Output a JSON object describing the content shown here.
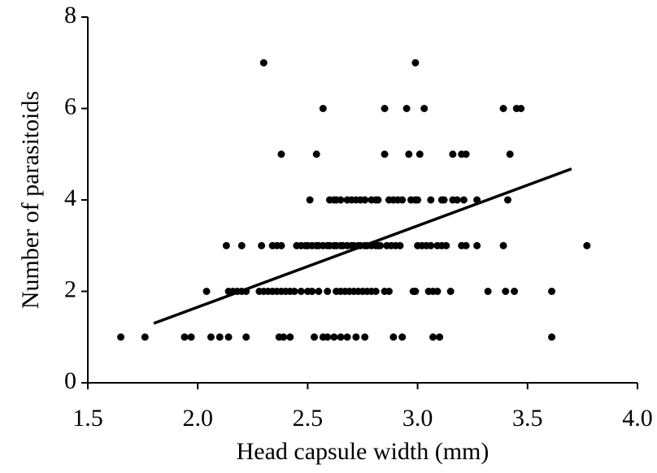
{
  "chart_data": {
    "type": "scatter",
    "x_label": "Head capsule width (mm)",
    "y_label": "Number of parasitoids",
    "color": "#000000",
    "x": [
      1.65,
      1.76,
      1.94,
      1.97,
      2.06,
      2.1,
      2.14,
      2.22,
      2.37,
      2.39,
      2.42,
      2.53,
      2.57,
      2.59,
      2.62,
      2.65,
      2.68,
      2.72,
      2.76,
      2.89,
      2.93,
      3.07,
      3.1,
      3.61,
      2.04,
      2.14,
      2.16,
      2.18,
      2.2,
      2.22,
      2.28,
      2.3,
      2.32,
      2.34,
      2.36,
      2.38,
      2.4,
      2.42,
      2.44,
      2.47,
      2.5,
      2.52,
      2.55,
      2.59,
      2.63,
      2.65,
      2.67,
      2.69,
      2.71,
      2.73,
      2.75,
      2.77,
      2.79,
      2.81,
      2.85,
      2.87,
      2.98,
      2.99,
      3.05,
      3.07,
      3.09,
      3.15,
      3.32,
      3.4,
      3.44,
      3.61,
      2.13,
      2.2,
      2.29,
      2.34,
      2.36,
      2.38,
      2.45,
      2.47,
      2.49,
      2.5,
      2.52,
      2.54,
      2.55,
      2.57,
      2.59,
      2.6,
      2.62,
      2.63,
      2.65,
      2.66,
      2.68,
      2.7,
      2.71,
      2.73,
      2.74,
      2.76,
      2.77,
      2.79,
      2.81,
      2.82,
      2.83,
      2.86,
      2.88,
      2.9,
      2.92,
      3.0,
      3.02,
      3.04,
      3.06,
      3.09,
      3.11,
      3.13,
      3.2,
      3.22,
      3.27,
      3.39,
      3.77,
      2.51,
      2.6,
      2.62,
      2.63,
      2.65,
      2.68,
      2.7,
      2.72,
      2.74,
      2.76,
      2.79,
      2.81,
      2.82,
      2.87,
      2.89,
      2.91,
      2.93,
      2.97,
      2.99,
      3.0,
      3.06,
      3.11,
      3.12,
      3.16,
      3.18,
      3.21,
      3.27,
      3.41,
      2.38,
      2.54,
      2.85,
      2.96,
      3.01,
      3.16,
      3.2,
      3.22,
      3.42,
      2.57,
      2.85,
      2.95,
      3.03,
      3.39,
      3.45,
      3.47,
      2.3,
      2.99
    ],
    "y": [
      1,
      1,
      1,
      1,
      1,
      1,
      1,
      1,
      1,
      1,
      1,
      1,
      1,
      1,
      1,
      1,
      1,
      1,
      1,
      1,
      1,
      1,
      1,
      1,
      2,
      2,
      2,
      2,
      2,
      2,
      2,
      2,
      2,
      2,
      2,
      2,
      2,
      2,
      2,
      2,
      2,
      2,
      2,
      2,
      2,
      2,
      2,
      2,
      2,
      2,
      2,
      2,
      2,
      2,
      2,
      2,
      2,
      2,
      2,
      2,
      2,
      2,
      2,
      2,
      2,
      2,
      3,
      3,
      3,
      3,
      3,
      3,
      3,
      3,
      3,
      3,
      3,
      3,
      3,
      3,
      3,
      3,
      3,
      3,
      3,
      3,
      3,
      3,
      3,
      3,
      3,
      3,
      3,
      3,
      3,
      3,
      3,
      3,
      3,
      3,
      3,
      3,
      3,
      3,
      3,
      3,
      3,
      3,
      3,
      3,
      3,
      3,
      3,
      4,
      4,
      4,
      4,
      4,
      4,
      4,
      4,
      4,
      4,
      4,
      4,
      4,
      4,
      4,
      4,
      4,
      4,
      4,
      4,
      4,
      4,
      4,
      4,
      4,
      4,
      4,
      4,
      5,
      5,
      5,
      5,
      5,
      5,
      5,
      5,
      5,
      6,
      6,
      6,
      6,
      6,
      6,
      6,
      7,
      7
    ],
    "fit_line": {
      "x": [
        1.8,
        3.7
      ],
      "y": [
        1.3,
        4.68
      ]
    },
    "xlim": [
      1.5,
      4.0
    ],
    "xticks": [
      {
        "value": 1.5,
        "label": "1.5"
      },
      {
        "value": 2.0,
        "label": "2.0"
      },
      {
        "value": 2.5,
        "label": "2.5"
      },
      {
        "value": 3.0,
        "label": "3.0"
      },
      {
        "value": 3.5,
        "label": "3.5"
      },
      {
        "value": 4.0,
        "label": "4.0"
      }
    ],
    "ylim": [
      0,
      8
    ],
    "yticks": [
      0,
      2,
      4,
      6,
      8
    ],
    "grid": false
  }
}
